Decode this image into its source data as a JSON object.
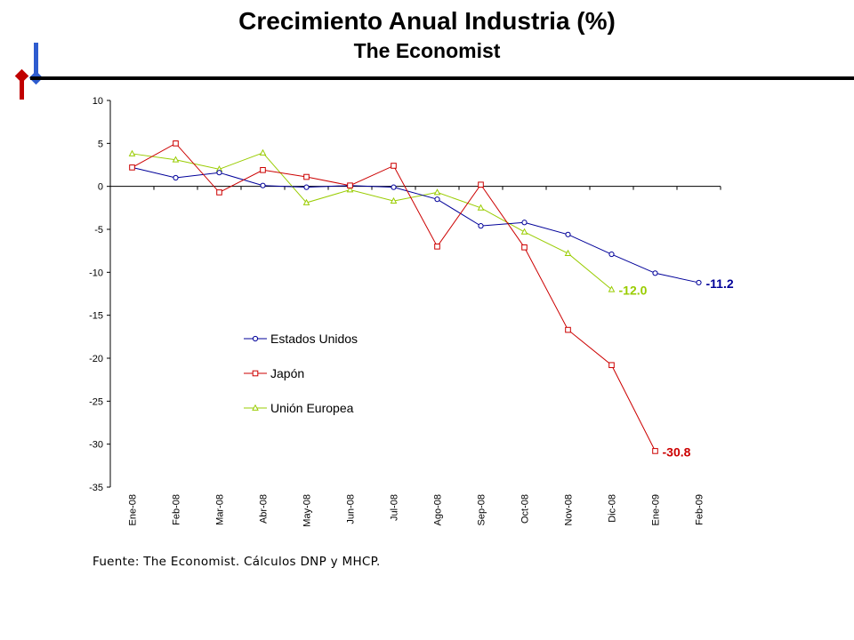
{
  "slide": {
    "title": "Crecimiento Anual Industria (%)",
    "subtitle": "The Economist",
    "source": "Fuente: The Economist. Cálculos DNP y MHCP.",
    "logo_colors": {
      "red": "#c00000",
      "blue": "#2e5ccf"
    }
  },
  "chart_data": {
    "type": "line",
    "title": "",
    "xlabel": "",
    "ylabel": "",
    "categories": [
      "Ene-08",
      "Feb-08",
      "Mar-08",
      "Abr-08",
      "May-08",
      "Jun-08",
      "Jul-08",
      "Ago-08",
      "Sep-08",
      "Oct-08",
      "Nov-08",
      "Dic-08",
      "Ene-09",
      "Feb-09"
    ],
    "ylim": [
      -35,
      10
    ],
    "yticks": [
      10,
      5,
      0,
      -5,
      -10,
      -15,
      -20,
      -25,
      -30,
      -35
    ],
    "grid": false,
    "legend": "inside-left",
    "series": [
      {
        "name": "Estados Unidos",
        "color": "#000099",
        "marker": "circle",
        "values": [
          2.2,
          1.0,
          1.6,
          0.1,
          -0.1,
          0.1,
          -0.1,
          -1.5,
          -4.6,
          -4.2,
          -5.6,
          -7.9,
          -10.1,
          -11.2
        ],
        "end_label": "-11.2",
        "end_label_color": "#000099"
      },
      {
        "name": "Japón",
        "color": "#cc0000",
        "marker": "square",
        "values": [
          2.2,
          5.0,
          -0.7,
          1.9,
          1.1,
          0.1,
          2.4,
          -7.0,
          0.2,
          -7.1,
          -16.7,
          -20.8,
          -30.8,
          null
        ],
        "end_label": "-30.8",
        "end_label_color": "#cc0000"
      },
      {
        "name": "Unión Europea",
        "color": "#99cc00",
        "marker": "triangle",
        "values": [
          3.8,
          3.1,
          2.0,
          3.9,
          -1.9,
          -0.4,
          -1.7,
          -0.7,
          -2.5,
          -5.3,
          -7.8,
          -12.0,
          null,
          null
        ],
        "end_label": "-12.0",
        "end_label_color": "#99cc00"
      }
    ]
  }
}
